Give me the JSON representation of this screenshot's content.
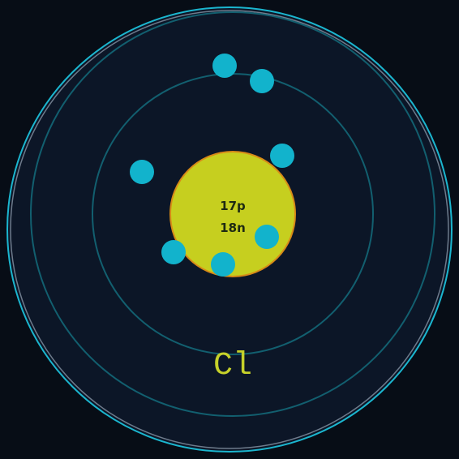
{
  "atom": {
    "symbol": "Cl",
    "protons_label": "17p",
    "neutrons_label": "18n",
    "electron_count": 7
  },
  "colors": {
    "background": "#070d16",
    "disc": "#0c1627",
    "outer_rim": "#1bb6cf",
    "outer_rim_inner": "#6e7b8c",
    "shell_ring": "#125f6f",
    "nucleus_fill": "#c6cf1f",
    "nucleus_stroke": "#d88a17",
    "nucleus_text": "#1e2a12",
    "electron": "#12b3cc",
    "symbol": "#c6d12a"
  }
}
